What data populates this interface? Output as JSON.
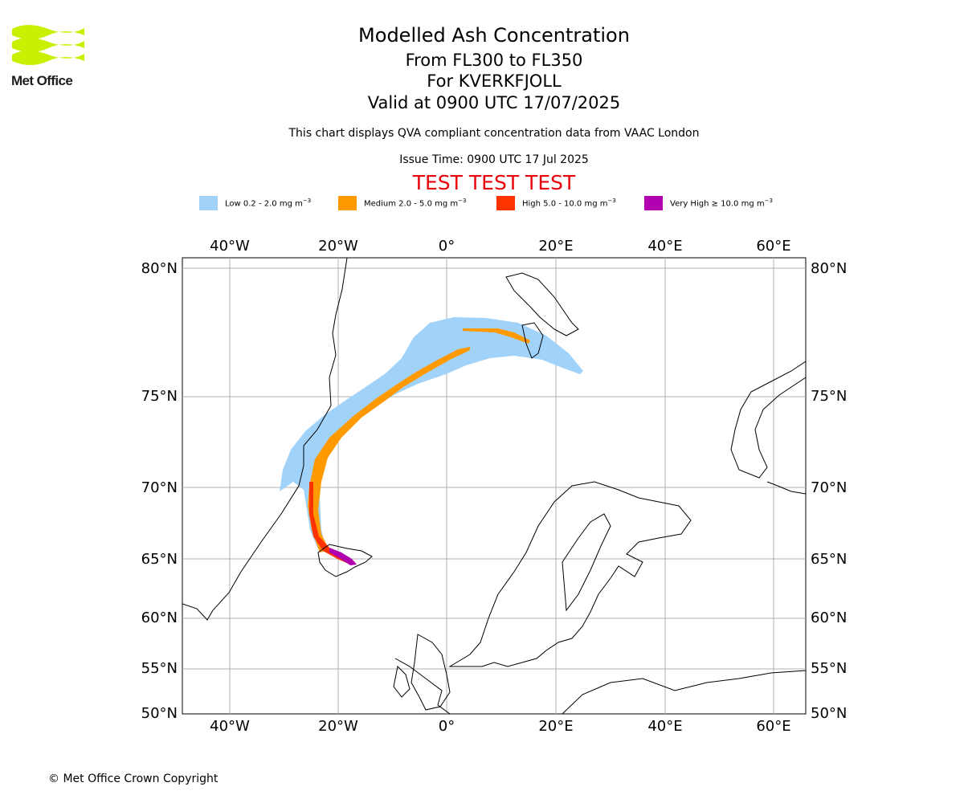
{
  "logo": {
    "text": "Met Office",
    "color": "#c8f000"
  },
  "header": {
    "title": "Modelled Ash Concentration",
    "levels": "From FL300 to FL350",
    "volcano": "For KVERKFJOLL",
    "valid": "Valid at 0900 UTC 17/07/2025",
    "subtitle": "This chart displays QVA compliant concentration data from VAAC London",
    "issue_time": "Issue Time: 0900 UTC 17 Jul 2025",
    "test_banner": "TEST TEST TEST"
  },
  "legend": [
    {
      "label": "Low 0.2 - 2.0 mg m",
      "color": "#a0d2fa"
    },
    {
      "label": "Medium 2.0 - 5.0 mg m",
      "color": "#ff9900"
    },
    {
      "label": "High 5.0 - 10.0 mg m",
      "color": "#ff3300"
    },
    {
      "label": "Very High  ≥  10.0 mg m",
      "color": "#b000b0"
    }
  ],
  "legend_unit_exponent": "−3",
  "map": {
    "lon_labels": [
      "40°W",
      "20°W",
      "0°",
      "20°E",
      "40°E",
      "60°E"
    ],
    "lat_labels": [
      "80°N",
      "75°N",
      "70°N",
      "65°N",
      "60°N",
      "55°N",
      "50°N"
    ],
    "grid": true
  },
  "footer": {
    "copyright": "© Met Office Crown Copyright"
  }
}
